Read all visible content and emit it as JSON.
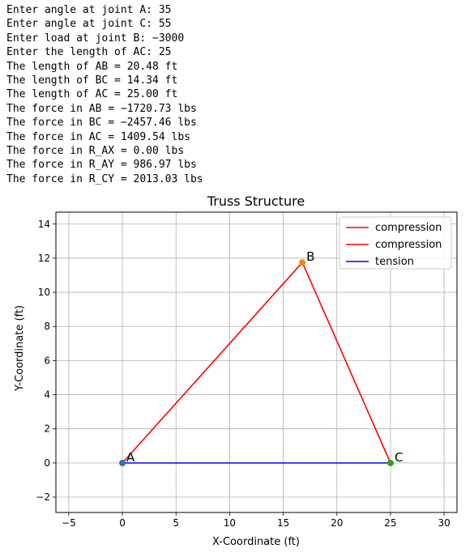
{
  "console": {
    "lines": [
      "Enter angle at joint A: 35",
      "Enter angle at joint C: 55",
      "Enter load at joint B: −3000",
      "Enter the length of AC: 25",
      "The length of AB = 20.48 ft",
      "The length of BC = 14.34 ft",
      "The length of AC = 25.00 ft",
      "The force in AB = −1720.73 lbs",
      "The force in BC = −2457.46 lbs",
      "The force in AC = 1409.54 lbs",
      "The force in R_AX = 0.00 lbs",
      "The force in R_AY = 986.97 lbs",
      "The force in R_CY = 2013.03 lbs"
    ]
  },
  "chart_data": {
    "type": "line",
    "title": "Truss Structure",
    "xlabel": "X-Coordinate (ft)",
    "ylabel": "Y-Coordinate (ft)",
    "xlim": [
      -6.2,
      31.2
    ],
    "ylim": [
      -2.9,
      14.7
    ],
    "xticks": [
      -5,
      0,
      5,
      10,
      15,
      20,
      25,
      30
    ],
    "yticks": [
      -2,
      0,
      2,
      4,
      6,
      8,
      10,
      12,
      14
    ],
    "grid": true,
    "legend_position": "top-right",
    "series": [
      {
        "name": "compression",
        "color": "#ff0000",
        "x": [
          0,
          16.78
        ],
        "y": [
          0,
          11.75
        ]
      },
      {
        "name": "compression",
        "color": "#ff0000",
        "x": [
          16.78,
          25
        ],
        "y": [
          11.75,
          0
        ]
      },
      {
        "name": "tension",
        "color": "#0000ff",
        "x": [
          0,
          25
        ],
        "y": [
          0,
          0
        ]
      }
    ],
    "joints": [
      {
        "label": "A",
        "x": 0,
        "y": 0,
        "color": "#1f77b4"
      },
      {
        "label": "B",
        "x": 16.78,
        "y": 11.75,
        "color": "#ff7f0e"
      },
      {
        "label": "C",
        "x": 25,
        "y": 0,
        "color": "#2ca02c"
      }
    ]
  }
}
